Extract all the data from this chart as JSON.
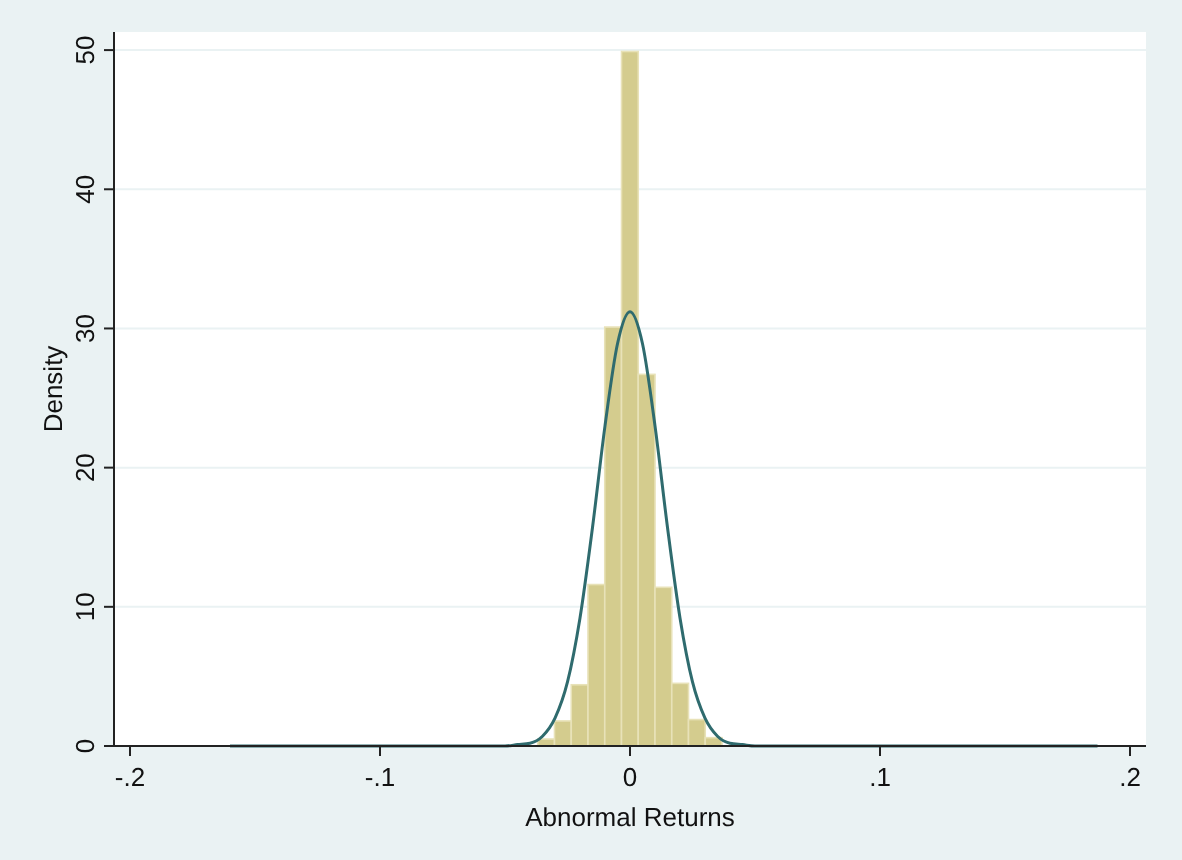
{
  "chart_data": {
    "type": "histogram",
    "xlabel": "Abnormal Returns",
    "ylabel": "Density",
    "xlim": [
      -0.2064,
      0.2064
    ],
    "ylim": [
      0,
      51.3
    ],
    "xticks": [
      {
        "value": -0.2,
        "label": "-.2"
      },
      {
        "value": -0.1,
        "label": "-.1"
      },
      0,
      {
        "value": 0.1,
        "label": ".1"
      },
      {
        "value": 0.2,
        "label": ".2"
      }
    ],
    "yticks": [
      0,
      10,
      20,
      30,
      40,
      50
    ],
    "grid": "y",
    "series": [
      {
        "color": "#d4cc8e",
        "bins": [
          -0.0369,
          -0.0302,
          -0.0235,
          -0.0168,
          -0.0101,
          -0.0034,
          0.0033,
          0.01,
          0.0167,
          0.0234,
          0.0301,
          0.0368
        ],
        "values": [
          0.5,
          1.8,
          4.4,
          11.6,
          30.1,
          49.9,
          26.7,
          11.4,
          4.5,
          1.9,
          0.6
        ]
      },
      {
        "type": "line",
        "color": "#2f6b6e",
        "x": [
          -0.16,
          -0.1,
          -0.06,
          -0.05,
          -0.045,
          -0.04,
          -0.035,
          -0.03,
          -0.025,
          -0.02,
          -0.015,
          -0.01,
          -0.005,
          0,
          0.005,
          0.01,
          0.015,
          0.02,
          0.025,
          0.03,
          0.035,
          0.04,
          0.045,
          0.05,
          0.06,
          0.1,
          0.187
        ],
        "values": [
          0,
          0,
          0,
          0,
          0.1,
          0.2,
          0.7,
          2,
          4.6,
          9.2,
          15.7,
          23,
          28.9,
          31.2,
          28.9,
          23,
          15.7,
          9.2,
          4.6,
          2,
          0.7,
          0.2,
          0.1,
          0,
          0,
          0,
          0
        ]
      }
    ]
  }
}
